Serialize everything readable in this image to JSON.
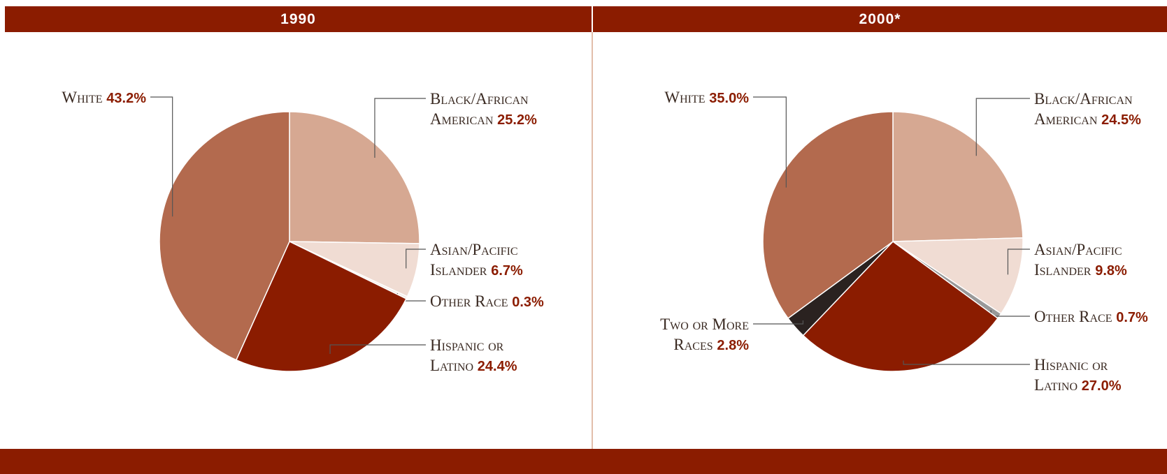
{
  "chart_data": [
    {
      "type": "pie",
      "title": "1990",
      "categories": [
        "Black/African American",
        "Asian/Pacific Islander",
        "Other Race",
        "Hispanic or Latino",
        "White"
      ],
      "values": [
        25.2,
        6.7,
        0.3,
        24.4,
        43.2
      ],
      "value_labels": [
        "25.2%",
        "6.7%",
        "0.3%",
        "24.4%",
        "43.2%"
      ],
      "colors": [
        "#d6a892",
        "#f0dcd3",
        "#f4ece8",
        "#8b1c00",
        "#b36a4e"
      ]
    },
    {
      "type": "pie",
      "title": "2000*",
      "categories": [
        "Black/African American",
        "Asian/Pacific Islander",
        "Other Race",
        "Hispanic or Latino",
        "Two or More Races",
        "White"
      ],
      "values": [
        24.5,
        9.8,
        0.7,
        27.0,
        2.8,
        35.0
      ],
      "value_labels": [
        "24.5%",
        "9.8%",
        "0.7%",
        "27.0%",
        "2.8%",
        "35.0%"
      ],
      "colors": [
        "#d6a892",
        "#f0dcd3",
        "#999999",
        "#8b1c00",
        "#2a2220",
        "#b36a4e"
      ]
    }
  ]
}
